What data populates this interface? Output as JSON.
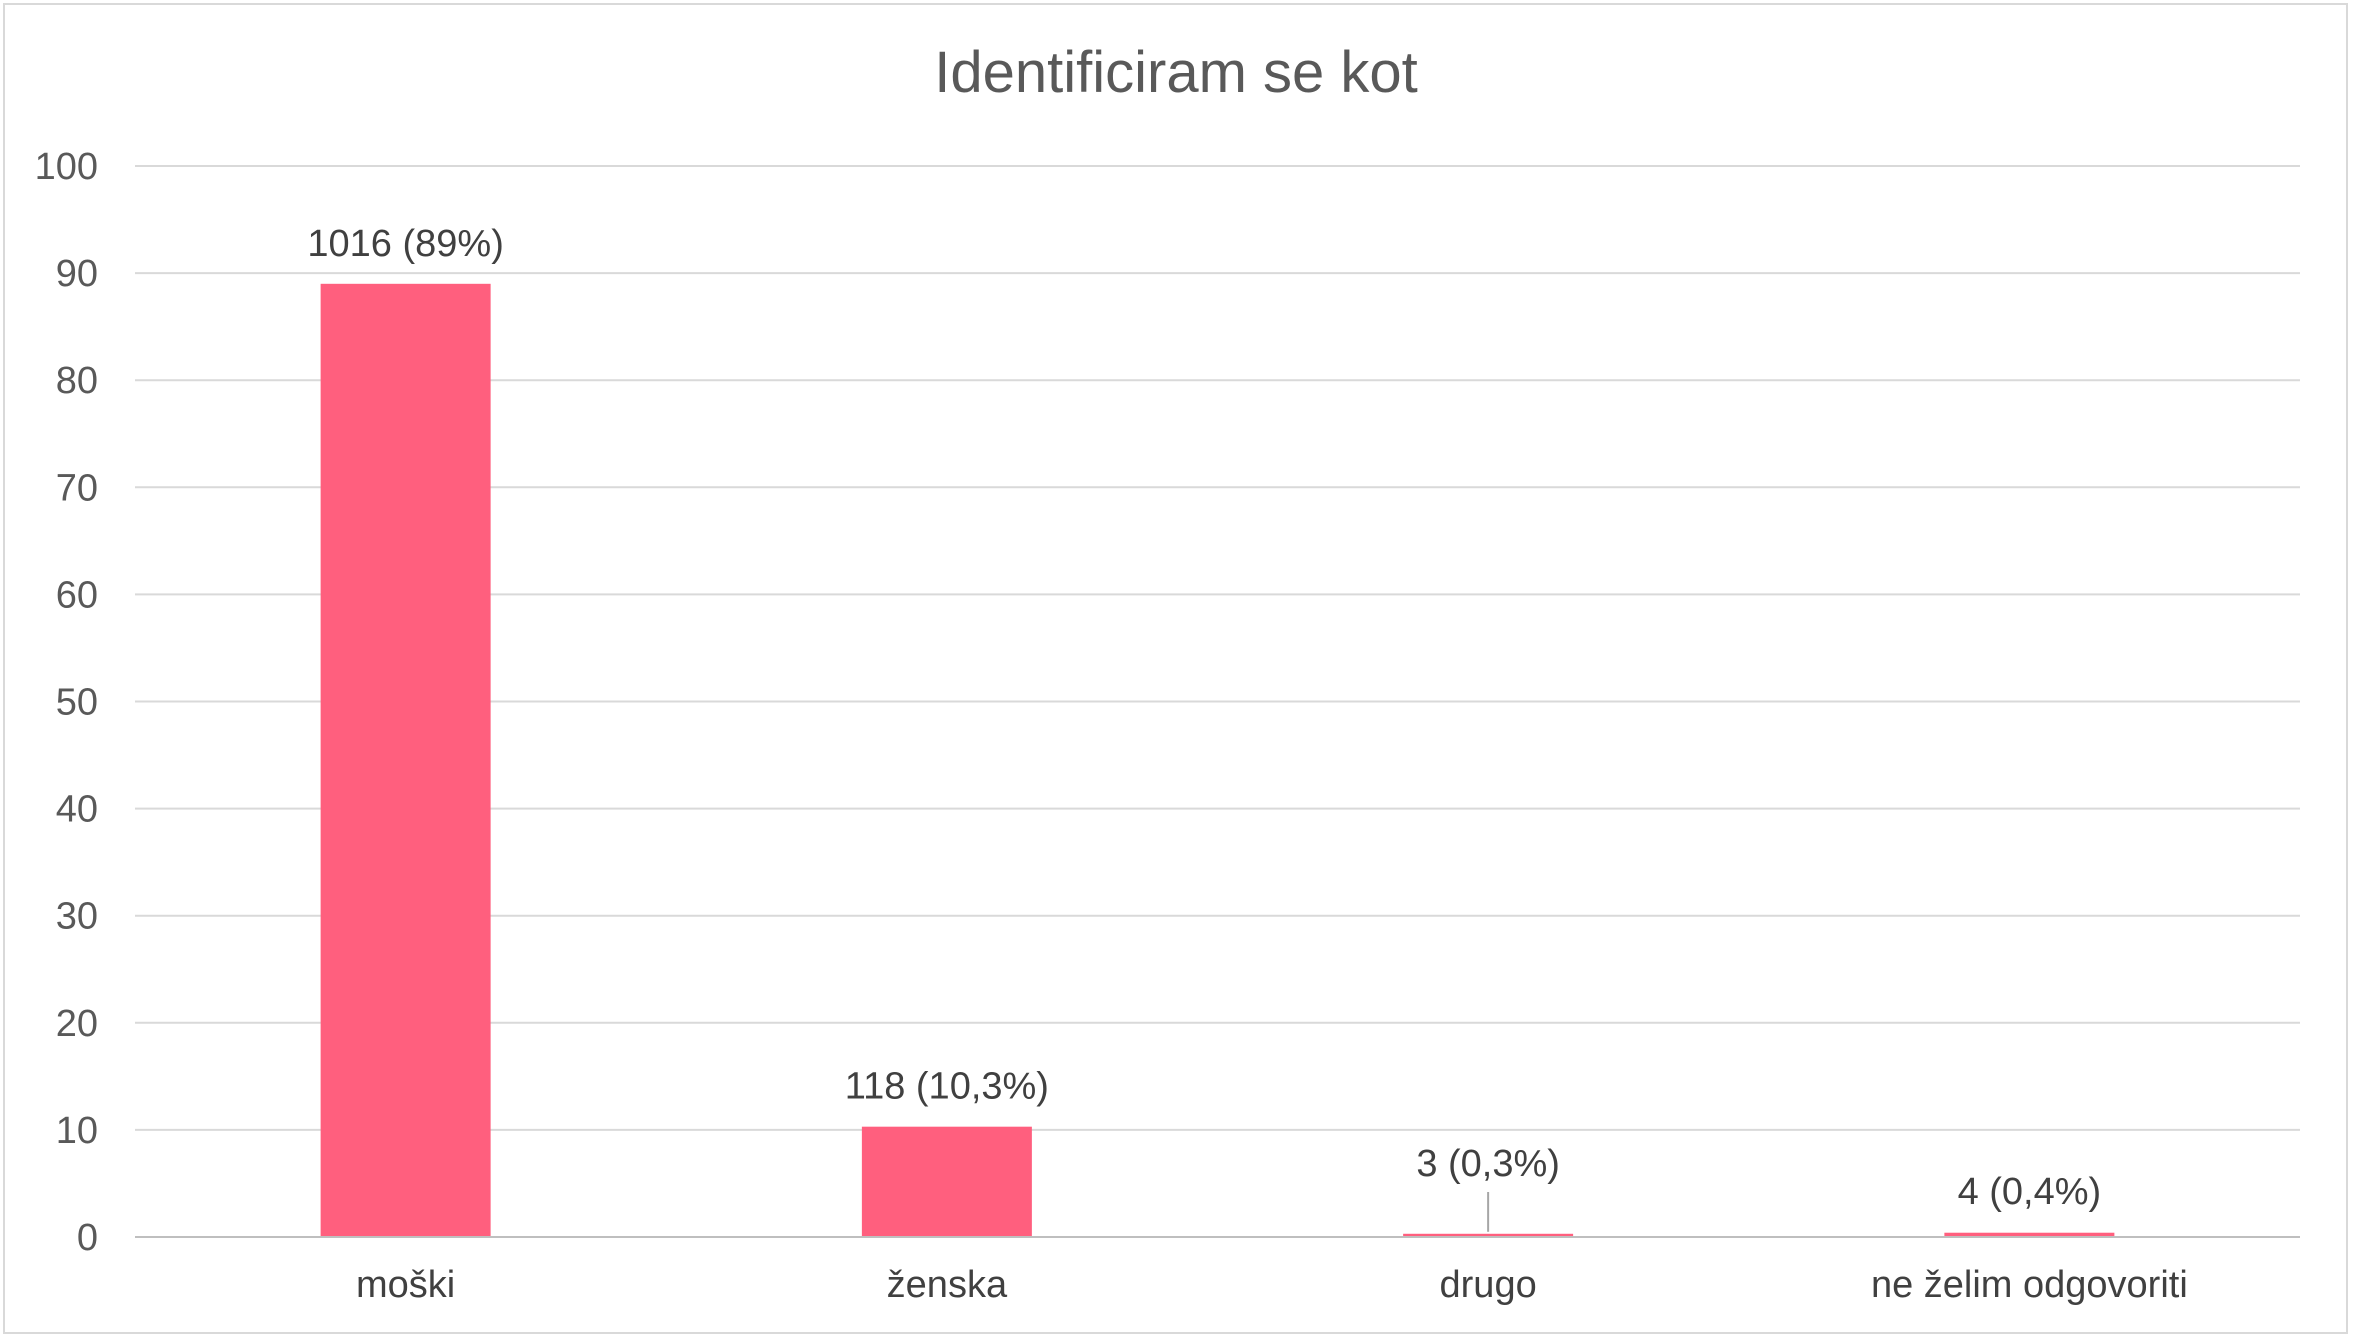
{
  "chart_data": {
    "type": "bar",
    "title": "Identificiram se kot",
    "xlabel": "",
    "ylabel": "",
    "categories": [
      "moški",
      "ženska",
      "drugo",
      "ne želim odgovoriti"
    ],
    "values": [
      89,
      10.3,
      0.3,
      0.4
    ],
    "data_labels": [
      "1016 (89%)",
      "118 (10,3%)",
      "3 (0,3%)",
      "4 (0,4%)"
    ],
    "ylim": [
      0,
      100
    ],
    "yticks": [
      0,
      10,
      20,
      30,
      40,
      50,
      60,
      70,
      80,
      90,
      100
    ],
    "grid": true,
    "legend": "none",
    "bar_color": "#ff5f7e",
    "grid_color": "#d9d9d9",
    "axis_color": "#bfbfbf"
  }
}
